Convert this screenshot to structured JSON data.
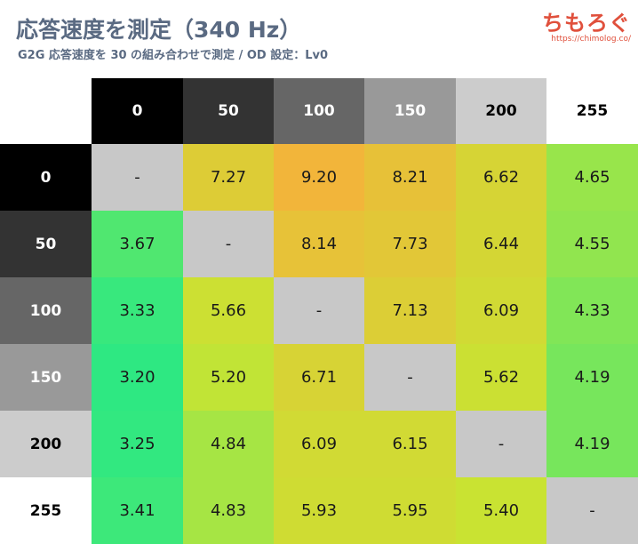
{
  "header": {
    "title": "応答速度を測定（340 Hz）",
    "subtitle": "G2G 応答速度を 30 の組み合わせで測定 / OD 設定：Lv0",
    "brand_name": "ちもろぐ",
    "brand_url": "https://chimolog.co/"
  },
  "colors": {
    "diagonal": "#c8c8c8",
    "scale_low": "#2ee882",
    "scale_mid": "#c8e432",
    "scale_high": "#f2b53a"
  },
  "chart_data": {
    "type": "heatmap",
    "columns": [
      "0",
      "50",
      "100",
      "150",
      "200",
      "255"
    ],
    "rows": [
      "0",
      "50",
      "100",
      "150",
      "200",
      "255"
    ],
    "header_shades": [
      "#000000",
      "#333333",
      "#666666",
      "#999999",
      "#cccccc",
      "#ffffff"
    ],
    "header_text_colors": [
      "#ffffff",
      "#ffffff",
      "#ffffff",
      "#ffffff",
      "#000000",
      "#000000"
    ],
    "values": [
      [
        "-",
        "7.27",
        "9.20",
        "8.21",
        "6.62",
        "4.65"
      ],
      [
        "3.67",
        "-",
        "8.14",
        "7.73",
        "6.44",
        "4.55"
      ],
      [
        "3.33",
        "5.66",
        "-",
        "7.13",
        "6.09",
        "4.33"
      ],
      [
        "3.20",
        "5.20",
        "6.71",
        "-",
        "5.62",
        "4.19"
      ],
      [
        "3.25",
        "4.84",
        "6.09",
        "6.15",
        "-",
        "4.19"
      ],
      [
        "3.41",
        "4.83",
        "5.93",
        "5.95",
        "5.40",
        "-"
      ]
    ]
  }
}
